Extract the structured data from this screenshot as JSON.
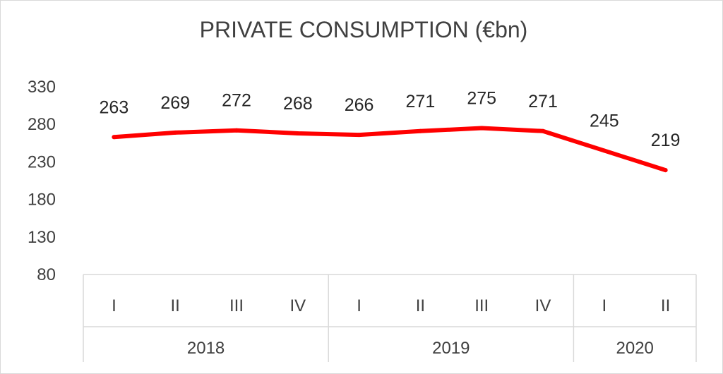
{
  "chart_data": {
    "type": "line",
    "title": "PRIVATE CONSUMPTION (€bn)",
    "xlabel": "",
    "ylabel": "",
    "ylim": [
      80,
      330
    ],
    "yticks": [
      80,
      130,
      180,
      230,
      280,
      330
    ],
    "categories": [
      "I",
      "II",
      "III",
      "IV",
      "I",
      "II",
      "III",
      "IV",
      "I",
      "II"
    ],
    "groups": [
      {
        "label": "2018",
        "count": 4
      },
      {
        "label": "2019",
        "count": 4
      },
      {
        "label": "2020",
        "count": 2
      }
    ],
    "series": [
      {
        "values": [
          263,
          269,
          272,
          268,
          266,
          271,
          275,
          271,
          245,
          219
        ],
        "color": "#ff0000"
      }
    ],
    "data_labels": true,
    "grid": false,
    "legend": "none"
  }
}
